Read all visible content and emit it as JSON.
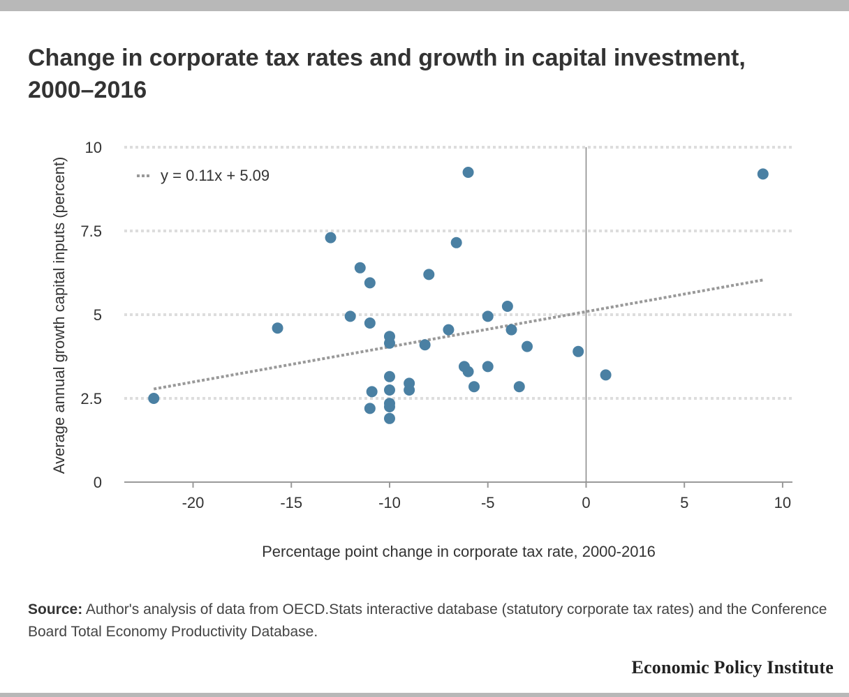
{
  "header": {
    "title": "Change in corporate tax rates and growth in capital investment, 2000–2016"
  },
  "chart_data": {
    "type": "scatter",
    "xlabel": "Percentage point change in corporate tax rate, 2000-2016",
    "ylabel": "Average annual growth capital inputs (percent)",
    "xlim": [
      -23.5,
      10.5
    ],
    "ylim": [
      0,
      10
    ],
    "xticks": [
      -20,
      -15,
      -10,
      -5,
      0,
      5,
      10
    ],
    "yticks": [
      0,
      2.5,
      5,
      7.5,
      10
    ],
    "ytick_labels": [
      "0",
      "2.5",
      "5",
      "7.5",
      "10"
    ],
    "grid": "horizontal-dotted",
    "legend_placement": "top-left",
    "trendline": {
      "label": "y = 0.11x + 5.09",
      "slope": 0.105,
      "intercept": 5.09,
      "x_start": -22,
      "x_end": 9,
      "color": "#999999"
    },
    "point_color": "#4a80a3",
    "points": [
      {
        "x": -22.0,
        "y": 2.5
      },
      {
        "x": -15.7,
        "y": 4.6
      },
      {
        "x": -13.0,
        "y": 7.3
      },
      {
        "x": -12.0,
        "y": 4.95
      },
      {
        "x": -11.5,
        "y": 6.4
      },
      {
        "x": -11.0,
        "y": 5.95
      },
      {
        "x": -11.0,
        "y": 4.75
      },
      {
        "x": -11.0,
        "y": 2.2
      },
      {
        "x": -10.9,
        "y": 2.7
      },
      {
        "x": -10.0,
        "y": 4.35
      },
      {
        "x": -10.0,
        "y": 4.15
      },
      {
        "x": -10.0,
        "y": 3.15
      },
      {
        "x": -10.0,
        "y": 2.75
      },
      {
        "x": -10.0,
        "y": 2.35
      },
      {
        "x": -10.0,
        "y": 2.25
      },
      {
        "x": -10.0,
        "y": 1.9
      },
      {
        "x": -9.0,
        "y": 2.95
      },
      {
        "x": -9.0,
        "y": 2.75
      },
      {
        "x": -8.2,
        "y": 4.1
      },
      {
        "x": -8.0,
        "y": 6.2
      },
      {
        "x": -7.0,
        "y": 4.55
      },
      {
        "x": -6.6,
        "y": 7.15
      },
      {
        "x": -6.2,
        "y": 3.45
      },
      {
        "x": -6.0,
        "y": 9.25
      },
      {
        "x": -6.0,
        "y": 3.3
      },
      {
        "x": -5.7,
        "y": 2.85
      },
      {
        "x": -5.0,
        "y": 4.95
      },
      {
        "x": -5.0,
        "y": 3.45
      },
      {
        "x": -4.0,
        "y": 5.25
      },
      {
        "x": -3.8,
        "y": 4.55
      },
      {
        "x": -3.4,
        "y": 2.85
      },
      {
        "x": -3.0,
        "y": 4.05
      },
      {
        "x": -0.4,
        "y": 3.9
      },
      {
        "x": 1.0,
        "y": 3.2
      },
      {
        "x": 9.0,
        "y": 9.2
      }
    ]
  },
  "footer": {
    "source_label": "Source:",
    "source_text": "Author's analysis of data from OECD.Stats interactive database (statutory corporate tax rates) and the Conference Board Total Economy Productivity Database.",
    "logo_text": "Economic Policy Institute"
  }
}
